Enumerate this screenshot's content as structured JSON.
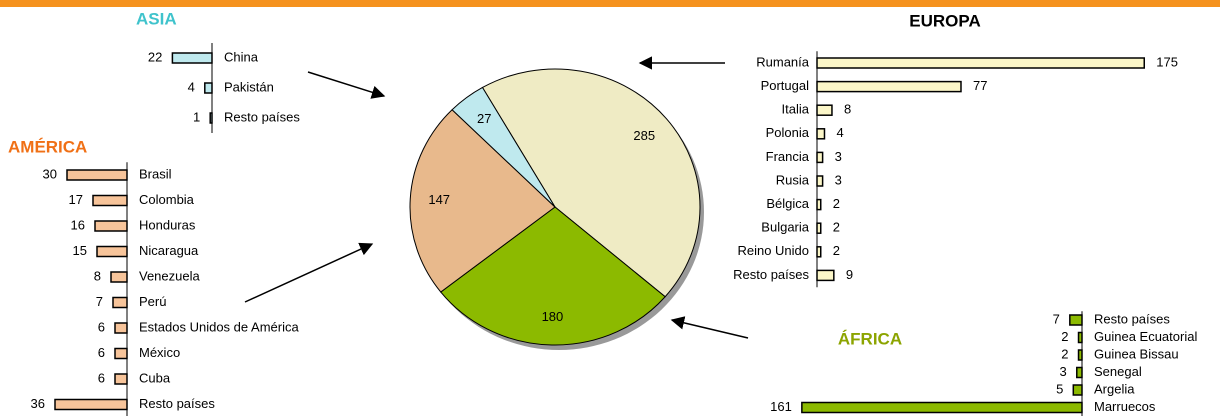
{
  "chart_data": [
    {
      "type": "pie",
      "values": [
        285,
        180,
        147,
        27
      ],
      "colors": [
        "#efebc4",
        "#8cba00",
        "#e8b98c",
        "#bfe9ee"
      ]
    },
    {
      "type": "bar",
      "title": "ASIA",
      "title_color": "#3fc3cc",
      "categories": [
        "China",
        "Pakistán",
        "Resto países"
      ],
      "values": [
        22,
        4,
        1
      ],
      "color": "#bfe9ee"
    },
    {
      "type": "bar",
      "title": "AMÉRICA",
      "title_color": "#f07016",
      "categories": [
        "Brasil",
        "Colombia",
        "Honduras",
        "Nicaragua",
        "Venezuela",
        "Perú",
        "Estados Unidos de América",
        "México",
        "Cuba",
        "Resto países"
      ],
      "values": [
        30,
        17,
        16,
        15,
        8,
        7,
        6,
        6,
        6,
        36
      ],
      "color": "#f7c49a"
    },
    {
      "type": "bar",
      "title": "EUROPA",
      "title_color": "#000000",
      "categories": [
        "Rumanía",
        "Portugal",
        "Italia",
        "Polonia",
        "Francia",
        "Rusia",
        "Bélgica",
        "Bulgaria",
        "Reino Unido",
        "Resto países"
      ],
      "values": [
        175,
        77,
        8,
        4,
        3,
        3,
        2,
        2,
        2,
        9
      ],
      "color": "#fbf6c8"
    },
    {
      "type": "bar",
      "title": "ÁFRICA",
      "title_color": "#8ca400",
      "categories": [
        "Resto países",
        "Guinea Ecuatorial",
        "Guinea Bissau",
        "Senegal",
        "Argelia",
        "Marruecos"
      ],
      "values": [
        7,
        2,
        2,
        3,
        5,
        161
      ],
      "color": "#8cba00"
    }
  ]
}
